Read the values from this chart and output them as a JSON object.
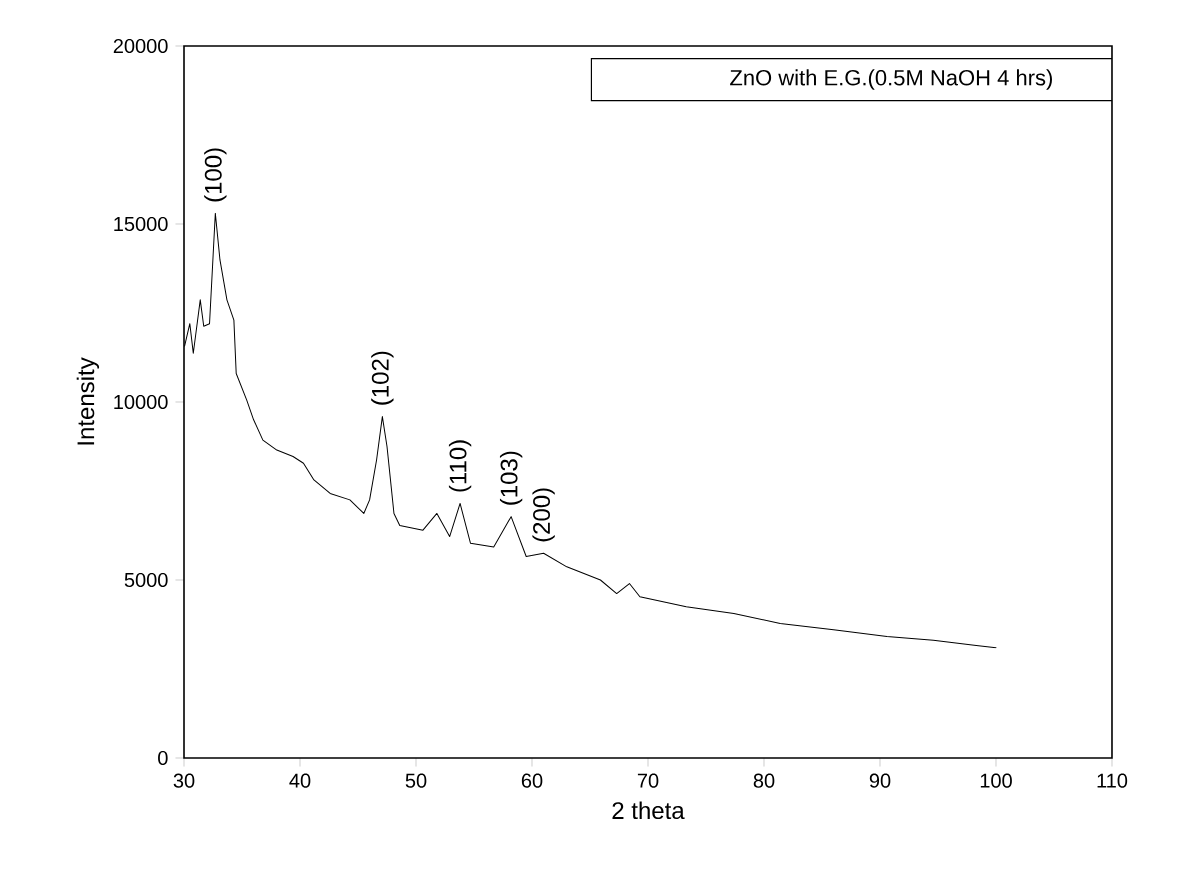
{
  "chart_data": {
    "type": "line",
    "title": "ZnO with E.G.(0.5M NaOH 4 hrs)",
    "xlabel": "2 theta",
    "ylabel": "Intensity",
    "x": [
      30.05,
      30.5,
      30.8,
      31.4,
      31.7,
      32.2,
      32.7,
      33.1,
      33.7,
      34.3,
      34.5,
      35.4,
      36.0,
      36.8,
      38.0,
      39.4,
      40.3,
      41.2,
      42.6,
      44.3,
      45.5,
      46.0,
      46.6,
      47.1,
      47.5,
      48.1,
      48.6,
      50.6,
      51.8,
      52.9,
      53.8,
      54.7,
      56.7,
      58.2,
      59.5,
      61.0,
      63.0,
      65.9,
      67.3,
      68.4,
      69.3,
      73.3,
      77.4,
      81.4,
      86.0,
      90.6,
      94.6,
      98.3,
      100.0
    ],
    "series": [
      {
        "color": "#000000",
        "values": [
          11570,
          12200,
          11370,
          12870,
          12130,
          12200,
          15300,
          13990,
          12870,
          12300,
          10800,
          10060,
          9500,
          8930,
          8650,
          8470,
          8280,
          7810,
          7430,
          7250,
          6870,
          7250,
          8370,
          9590,
          8750,
          6870,
          6530,
          6400,
          6870,
          6220,
          7150,
          6030,
          5930,
          6780,
          5660,
          5750,
          5370,
          5000,
          4620,
          4900,
          4530,
          4250,
          4060,
          3780,
          3600,
          3410,
          3310,
          3160,
          3100
        ]
      }
    ],
    "annotations": [
      {
        "text": "(100)",
        "x": 32.7,
        "y": 15300
      },
      {
        "text": "(102)",
        "x": 47.1,
        "y": 9590
      },
      {
        "text": "(110)",
        "x": 53.8,
        "y": 7150
      },
      {
        "text": "(103)",
        "x": 58.2,
        "y": 6780
      },
      {
        "text": "(200)",
        "x": 61.0,
        "y": 5750
      }
    ],
    "xlim": [
      30,
      110
    ],
    "ylim": [
      0,
      20000
    ],
    "xticks": [
      30,
      40,
      50,
      60,
      70,
      80,
      90,
      100,
      110
    ],
    "yticks": [
      0,
      5000,
      10000,
      15000,
      20000
    ]
  }
}
